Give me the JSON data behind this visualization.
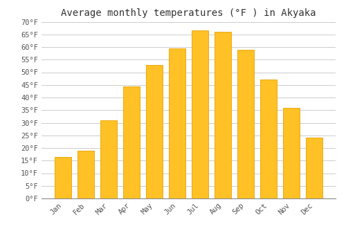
{
  "title": "Average monthly temperatures (°F ) in Akyaka",
  "months": [
    "Jan",
    "Feb",
    "Mar",
    "Apr",
    "May",
    "Jun",
    "Jul",
    "Aug",
    "Sep",
    "Oct",
    "Nov",
    "Dec"
  ],
  "values": [
    16.5,
    19,
    31,
    44.5,
    53,
    59.5,
    66.5,
    66,
    59,
    47,
    36,
    24
  ],
  "bar_color": "#FFC125",
  "bar_edge_color": "#E8A000",
  "ylim": [
    0,
    70
  ],
  "yticks": [
    0,
    5,
    10,
    15,
    20,
    25,
    30,
    35,
    40,
    45,
    50,
    55,
    60,
    65,
    70
  ],
  "ytick_labels": [
    "0°F",
    "5°F",
    "10°F",
    "15°F",
    "20°F",
    "25°F",
    "30°F",
    "35°F",
    "40°F",
    "45°F",
    "50°F",
    "55°F",
    "60°F",
    "65°F",
    "70°F"
  ],
  "grid_color": "#cccccc",
  "background_color": "#ffffff",
  "title_fontsize": 10,
  "tick_fontsize": 7.5,
  "font_family": "monospace"
}
